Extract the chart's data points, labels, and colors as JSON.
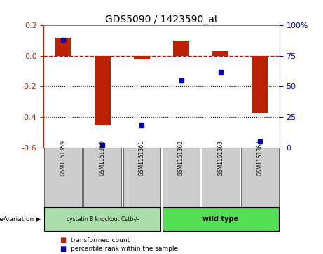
{
  "title": "GDS5090 / 1423590_at",
  "samples": [
    "GSM1151359",
    "GSM1151360",
    "GSM1151361",
    "GSM1151362",
    "GSM1151363",
    "GSM1151364"
  ],
  "transformed_counts": [
    0.12,
    -0.455,
    -0.025,
    0.1,
    0.033,
    -0.375
  ],
  "percentile_ranks": [
    88,
    2,
    18,
    55,
    62,
    5
  ],
  "ylim_left": [
    -0.6,
    0.2
  ],
  "ylim_right": [
    0,
    100
  ],
  "yticks_left": [
    0.2,
    0.0,
    -0.2,
    -0.4,
    -0.6
  ],
  "yticks_right": [
    100,
    75,
    50,
    25,
    0
  ],
  "bar_color": "#bb2200",
  "dot_color": "#0000bb",
  "group1_label": "cystatin B knockout Cstb-/-",
  "group2_label": "wild type",
  "group1_color": "#aaddaa",
  "group2_color": "#55dd55",
  "group1_samples": [
    0,
    1,
    2
  ],
  "group2_samples": [
    3,
    4,
    5
  ],
  "annotation_label": "genotype/variation",
  "legend_bar_label": "transformed count",
  "legend_dot_label": "percentile rank within the sample",
  "bg_color": "#ffffff",
  "plot_bg_color": "#ffffff",
  "grid_color": "#000000",
  "zero_line_color": "#aa1100",
  "sample_box_color": "#cccccc",
  "title_color": "#000000",
  "bar_width": 0.4
}
